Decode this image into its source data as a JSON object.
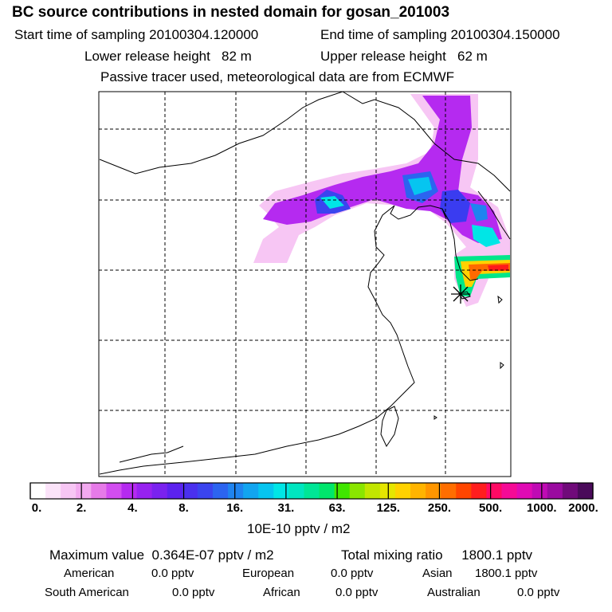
{
  "header": {
    "title": "BC  source contributions in nested domain for gosan_201003",
    "start_label": "Start time of sampling",
    "start_value": "20100304.120000",
    "end_label": "End time of sampling",
    "end_value": "20100304.150000",
    "lower_label": "Lower release height",
    "lower_value": "82 m",
    "upper_label": "Upper release height",
    "upper_value": "62 m",
    "tracer_note": "Passive tracer used, meteorological data are from ECMWF"
  },
  "map": {
    "receptor_marker": "asterisk",
    "plume_color_scale": [
      "#fde8fb",
      "#f3b3f0",
      "#d24df0",
      "#8a25f0",
      "#3a3cf0",
      "#1f8cf0",
      "#00e6e6",
      "#00e68a",
      "#a5e600",
      "#ffd200",
      "#ff6a00",
      "#ff1a1a",
      "#ff00a0"
    ]
  },
  "colorbar": {
    "labels": [
      "0.",
      "2.",
      "4.",
      "8.",
      "16.",
      "31.",
      "63.",
      "125.",
      "250.",
      "500.",
      "1000.",
      "2000."
    ],
    "colors": [
      "#ffffff",
      "#fbe3f9",
      "#f7c6f4",
      "#f2a9ef",
      "#e67ae8",
      "#d24df0",
      "#b52af0",
      "#9722f0",
      "#7a22ef",
      "#5c22ef",
      "#4a30ef",
      "#3b44ef",
      "#2c64f0",
      "#1f84f0",
      "#12a5f0",
      "#06c5f0",
      "#00e6e6",
      "#00e6c0",
      "#00e696",
      "#00e66c",
      "#40e600",
      "#8ae600",
      "#c2e600",
      "#e6e600",
      "#ffd200",
      "#ffb400",
      "#ff9600",
      "#ff6e00",
      "#ff4600",
      "#ff1e1e",
      "#ff0a64",
      "#f50a96",
      "#e00ab4",
      "#c00ab4",
      "#9a0aa0",
      "#700a7a",
      "#4a0a5a"
    ],
    "unit": "10E-10 pptv / m2"
  },
  "summary": {
    "max_label": "Maximum value",
    "max_value": "0.364E-07 pptv / m2",
    "total_label": "Total mixing ratio",
    "total_value": "1800.1 pptv",
    "regions": [
      {
        "name": "American",
        "value": "0.0 pptv"
      },
      {
        "name": "European",
        "value": "0.0 pptv"
      },
      {
        "name": "Asian",
        "value": "1800.1 pptv"
      },
      {
        "name": "South American",
        "value": "0.0 pptv"
      },
      {
        "name": "African",
        "value": "0.0 pptv"
      },
      {
        "name": "Australian",
        "value": "0.0 pptv"
      }
    ]
  }
}
